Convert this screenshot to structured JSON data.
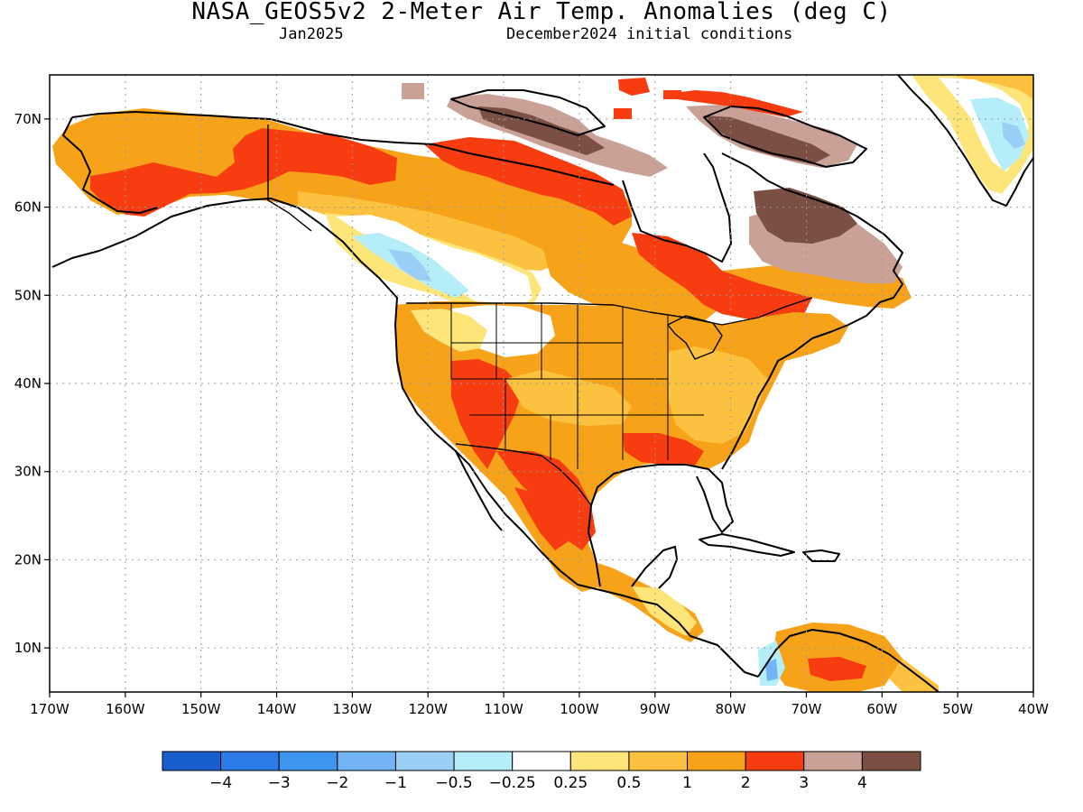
{
  "header": {
    "title": "NASA_GEOS5v2 2-Meter Air Temp. Anomalies (deg C)",
    "valid_month": "Jan2025",
    "init_conditions": "December2024 initial conditions"
  },
  "map": {
    "lon_range": [
      -170,
      -40
    ],
    "lat_range": [
      5,
      75
    ],
    "x_ticks": [
      "170W",
      "160W",
      "150W",
      "140W",
      "130W",
      "120W",
      "110W",
      "100W",
      "90W",
      "80W",
      "70W",
      "60W",
      "50W",
      "40W"
    ],
    "y_ticks": [
      "10N",
      "20N",
      "30N",
      "40N",
      "50N",
      "60N",
      "70N"
    ],
    "gridlines": "dotted"
  },
  "legend": {
    "colors": [
      "#1a5fcf",
      "#2d7be8",
      "#3d95f0",
      "#73b4f4",
      "#9ccff6",
      "#b5eef8",
      "#ffffff",
      "#fde57a",
      "#fcc23f",
      "#f6a31a",
      "#f73d10",
      "#c9a196",
      "#7b4f43"
    ],
    "labels": [
      "−4",
      "−3",
      "−2",
      "−1",
      "−0.5",
      "−0.25",
      "0.25",
      "0.5",
      "1",
      "2",
      "3",
      "4"
    ]
  }
}
